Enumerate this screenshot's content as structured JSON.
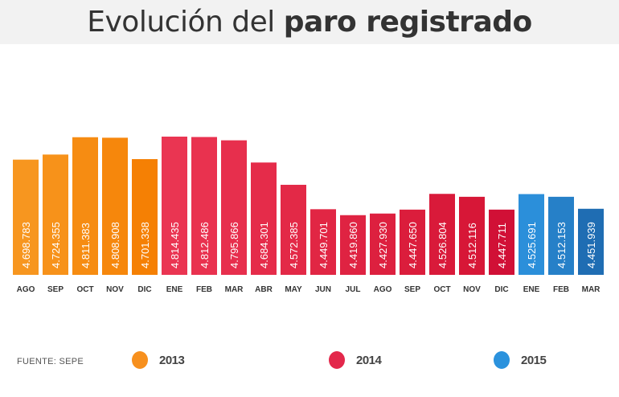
{
  "header": {
    "title_regular": "Evolución del",
    "title_bold": "paro registrado"
  },
  "source": "FUENTE: SEPE",
  "legend": [
    {
      "label": "2013",
      "color": "#f7901e"
    },
    {
      "label": "2014",
      "color": "#e3284b"
    },
    {
      "label": "2015",
      "color": "#2b92dd"
    }
  ],
  "chart_data": {
    "type": "bar",
    "title": "Evolución del paro registrado",
    "categories": [
      "AGO",
      "SEP",
      "OCT",
      "NOV",
      "DIC",
      "ENE",
      "FEB",
      "MAR",
      "ABR",
      "MAY",
      "JUN",
      "JUL",
      "AGO",
      "SEP",
      "OCT",
      "NOV",
      "DIC",
      "ENE",
      "FEB",
      "MAR"
    ],
    "years": [
      "2013",
      "2013",
      "2013",
      "2013",
      "2013",
      "2014",
      "2014",
      "2014",
      "2014",
      "2014",
      "2014",
      "2014",
      "2014",
      "2014",
      "2014",
      "2014",
      "2014",
      "2015",
      "2015",
      "2015"
    ],
    "values": [
      4698783,
      4724355,
      4811383,
      4808908,
      4701338,
      4814435,
      4812486,
      4795866,
      4684301,
      4572385,
      4449701,
      4419860,
      4427930,
      4447650,
      4526804,
      4512116,
      4447711,
      4525691,
      4512153,
      4451939
    ],
    "labels": [
      "4.698.783",
      "4.724.355",
      "4.811.383",
      "4.808.908",
      "4.701.338",
      "4.814.435",
      "4.812.486",
      "4.795.866",
      "4.684.301",
      "4.572.385",
      "4.449.701",
      "4.419.860",
      "4.427.930",
      "4.447.650",
      "4.526.804",
      "4.512.116",
      "4.447.711",
      "4.525.691",
      "4.512.153",
      "4.451.939"
    ],
    "colors": [
      "#f7961f",
      "#f7921a",
      "#f68c12",
      "#f6870c",
      "#f58004",
      "#ea3552",
      "#e9324f",
      "#e72f4d",
      "#e52c4a",
      "#e32947",
      "#e12644",
      "#df2342",
      "#dd203f",
      "#db1d3c",
      "#d91a3a",
      "#d71737",
      "#d11036",
      "#2b8fda",
      "#2680c8",
      "#1f6db3"
    ],
    "xlabel": "",
    "ylabel": "",
    "ylim": [
      4120000,
      4814435
    ],
    "grid": false,
    "legend_position": "bottom"
  }
}
